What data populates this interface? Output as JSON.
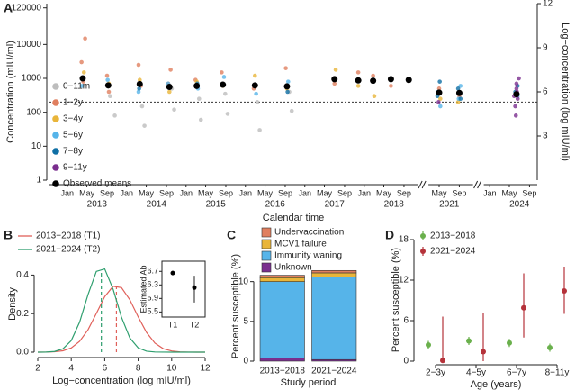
{
  "chart_data": [
    {
      "type": "scatter",
      "label": "A",
      "ylabel": "Concentration (mIU/ml)",
      "y2label": "Log−concentration (log mIU/ml)",
      "xlabel": "Calendar time",
      "log_y": true,
      "ylim": [
        1,
        160000
      ],
      "yticks": [
        1,
        10,
        100,
        1000,
        10000,
        120000
      ],
      "y2lim": [
        0,
        12
      ],
      "y2ticks": [
        3,
        6,
        9,
        12
      ],
      "xlim": [
        [
          2012.7,
          2018.9
        ],
        [
          2021.15,
          2021.9
        ],
        [
          2023.9,
          2024.8
        ]
      ],
      "xticks": [
        {
          "value": 2013,
          "label": "Jan"
        },
        {
          "value": 2013.33,
          "label": "May"
        },
        {
          "value": 2013.67,
          "label": "Sep"
        },
        {
          "value": 2014,
          "label": "Jan"
        },
        {
          "value": 2014.33,
          "label": "May"
        },
        {
          "value": 2014.67,
          "label": "Sep"
        },
        {
          "value": 2015,
          "label": "Jan"
        },
        {
          "value": 2015.33,
          "label": "May"
        },
        {
          "value": 2015.67,
          "label": "Sep"
        },
        {
          "value": 2016,
          "label": "Jan"
        },
        {
          "value": 2016.33,
          "label": "May"
        },
        {
          "value": 2016.67,
          "label": "Sep"
        },
        {
          "value": 2017,
          "label": "Jan"
        },
        {
          "value": 2017.33,
          "label": "May"
        },
        {
          "value": 2017.67,
          "label": "Sep"
        },
        {
          "value": 2018,
          "label": "Jan"
        },
        {
          "value": 2018.33,
          "label": "May"
        },
        {
          "value": 2018.67,
          "label": "Sep"
        },
        {
          "value": 2021.33,
          "label": "May"
        },
        {
          "value": 2021.67,
          "label": "Sep"
        },
        {
          "value": 2024,
          "label": "Jan"
        },
        {
          "value": 2024.33,
          "label": "May"
        },
        {
          "value": 2024.67,
          "label": "Sep"
        }
      ],
      "year_labels": [
        {
          "value": 2013.5,
          "label": "2013"
        },
        {
          "value": 2014.5,
          "label": "2014"
        },
        {
          "value": 2015.5,
          "label": "2015"
        },
        {
          "value": 2016.5,
          "label": "2016"
        },
        {
          "value": 2017.5,
          "label": "2017"
        },
        {
          "value": 2018.5,
          "label": "2018"
        },
        {
          "value": 2021.5,
          "label": "2021"
        },
        {
          "value": 2024.5,
          "label": "2024"
        }
      ],
      "reference_line": 200,
      "legend": "left",
      "series": [
        {
          "name": "0−11m",
          "color": "#bdbdbd",
          "x": [
            2013.72,
            2013.8,
            2014.26,
            2014.3,
            2014.76,
            2014.8,
            2015.22,
            2015.25,
            2015.66,
            2015.7,
            2016.2,
            2016.24,
            2016.74,
            2016.78
          ],
          "values": [
            300,
            80,
            150,
            40,
            500,
            120,
            250,
            60,
            350,
            90,
            200,
            30,
            400,
            110
          ]
        },
        {
          "name": "1−2y",
          "color": "#e07f5f",
          "x": [
            2013.24,
            2013.27,
            2013.3,
            2013.67,
            2013.7,
            2014.2,
            2014.24,
            2014.7,
            2014.74,
            2015.16,
            2015.6,
            2016.14,
            2016.68,
            2017.5,
            2017.9,
            2018.15,
            2018.45,
            2018.75,
            2021.33,
            2021.67,
            2024.45
          ],
          "values": [
            3000,
            800,
            15000,
            1200,
            400,
            2500,
            600,
            700,
            1800,
            900,
            1500,
            500,
            2000,
            700,
            1500,
            1200,
            600,
            900,
            500,
            300,
            400
          ]
        },
        {
          "name": "3−4y",
          "color": "#e9b53a",
          "x": [
            2013.28,
            2013.7,
            2014.22,
            2014.72,
            2015.18,
            2015.62,
            2016.16,
            2016.7,
            2017.52,
            2017.9,
            2018.17,
            2021.35,
            2021.65
          ],
          "values": [
            1500,
            700,
            900,
            400,
            800,
            600,
            1200,
            500,
            1800,
            600,
            300,
            250,
            200
          ]
        },
        {
          "name": "5−6y",
          "color": "#56b4e9",
          "x": [
            2013.25,
            2013.68,
            2014.2,
            2014.7,
            2015.2,
            2015.64,
            2016.18,
            2016.72,
            2021.31,
            2021.69,
            2021.35,
            2021.66,
            2024.47
          ],
          "values": [
            600,
            900,
            400,
            700,
            500,
            1100,
            350,
            800,
            400,
            600,
            150,
            250,
            300
          ]
        },
        {
          "name": "7−8y",
          "color": "#0f6fa5",
          "x": [
            2013.27,
            2014.21,
            2015.19,
            2016.71,
            2021.3,
            2021.34,
            2021.65,
            2021.69,
            2024.43,
            2024.47
          ],
          "values": [
            1000,
            500,
            700,
            400,
            300,
            800,
            500,
            250,
            400,
            600
          ]
        },
        {
          "name": "9−11y",
          "color": "#7a2e8e",
          "x": [
            2021.32,
            2021.68,
            2024.41,
            2024.43,
            2024.45,
            2024.47,
            2024.49,
            2024.44,
            2024.46,
            2024.45
          ],
          "values": [
            200,
            350,
            300,
            150,
            500,
            250,
            1000,
            80,
            400,
            700
          ]
        },
        {
          "name": "Observed means",
          "color": "#000000",
          "x": [
            2013.26,
            2013.69,
            2014.22,
            2014.72,
            2015.18,
            2015.62,
            2016.16,
            2016.7,
            2017.5,
            2017.9,
            2018.15,
            2018.45,
            2018.75,
            2021.33,
            2021.67,
            2024.45
          ],
          "values": [
            1000,
            620,
            680,
            560,
            600,
            650,
            620,
            580,
            950,
            870,
            850,
            950,
            900,
            380,
            370,
            340
          ]
        }
      ]
    },
    {
      "type": "line",
      "label": "B",
      "xlabel": "Log−concentration (log mIU/ml)",
      "ylabel": "Density",
      "x": [
        2,
        2.5,
        3,
        3.5,
        4,
        4.5,
        5,
        5.5,
        6,
        6.5,
        7,
        7.5,
        8,
        8.5,
        9,
        9.5,
        10,
        10.5,
        11,
        11.5,
        12
      ],
      "xlim": [
        2,
        12
      ],
      "xticks": [
        2,
        4,
        6,
        8,
        10,
        12
      ],
      "ylim": [
        0,
        0.5
      ],
      "yticks": [
        {
          "value": 0,
          "label": "0.0"
        },
        0.2,
        0.4
      ],
      "legend": "top",
      "series": [
        {
          "name": "2013−2018 (T1)",
          "color": "#e0605a",
          "mean": 6.7,
          "values": [
            0.0001,
            0.0004,
            0.002,
            0.007,
            0.022,
            0.056,
            0.116,
            0.201,
            0.288,
            0.342,
            0.335,
            0.272,
            0.183,
            0.102,
            0.047,
            0.018,
            0.006,
            0.0015,
            0.0003,
            0.0001,
            0
          ]
        },
        {
          "name": "2021−2024 (T2)",
          "color": "#2e9e6e",
          "mean": 5.8,
          "values": [
            0.0001,
            0.0005,
            0.0035,
            0.017,
            0.06,
            0.156,
            0.298,
            0.419,
            0.432,
            0.327,
            0.182,
            0.074,
            0.022,
            0.005,
            0.0008,
            0.0002,
            0,
            0,
            0,
            0,
            0
          ]
        }
      ],
      "inset": {
        "type": "errorbar",
        "ylabel": "Estimated Ab",
        "categories": [
          "T1",
          "T2"
        ],
        "values": [
          6.65,
          6.22
        ],
        "lower": [
          6.6,
          5.78
        ],
        "upper": [
          6.71,
          6.57
        ],
        "ylim": [
          5.35,
          7.0
        ],
        "yticks": [
          5.5,
          5.9,
          6.3,
          6.7
        ]
      }
    },
    {
      "type": "stacked_bar",
      "label": "C",
      "xlabel": "Study period",
      "ylabel": "Percent susceptible (%)",
      "categories": [
        "2013−2018",
        "2021−2024"
      ],
      "ylim": [
        0,
        12
      ],
      "yticks": [
        0,
        5,
        10
      ],
      "series": [
        {
          "name": "Undervaccination",
          "color": "#e07f5f",
          "values": [
            0.3,
            0.3
          ]
        },
        {
          "name": "MCV1 failure",
          "color": "#e9b53a",
          "values": [
            0.5,
            0.5
          ]
        },
        {
          "name": "Immunity waning",
          "color": "#56b4e9",
          "values": [
            9.6,
            10.4
          ]
        },
        {
          "name": "Unknown",
          "color": "#7a2e8e",
          "values": [
            0.4,
            0.2
          ]
        }
      ]
    },
    {
      "type": "errorbar",
      "label": "D",
      "xlabel": "Age (years)",
      "ylabel": "Percent susceptible (%)",
      "categories": [
        "2−3y",
        "4−5y",
        "6−7y",
        "8−11y"
      ],
      "ylim": [
        0,
        18
      ],
      "yticks": [
        0,
        6,
        12,
        18
      ],
      "series": [
        {
          "name": "2013−2018",
          "color": "#6ab04c",
          "values": [
            2.4,
            3.0,
            2.7,
            2.0
          ],
          "lower": [
            1.8,
            2.4,
            2.1,
            1.4
          ],
          "upper": [
            3.0,
            3.6,
            3.3,
            2.6
          ]
        },
        {
          "name": "2021−2024",
          "color": "#b5323a",
          "values": [
            0.1,
            1.4,
            7.9,
            10.4
          ],
          "lower": [
            0,
            0,
            3.5,
            7.0
          ],
          "upper": [
            6.6,
            7.2,
            13.0,
            14.0
          ]
        }
      ]
    }
  ]
}
